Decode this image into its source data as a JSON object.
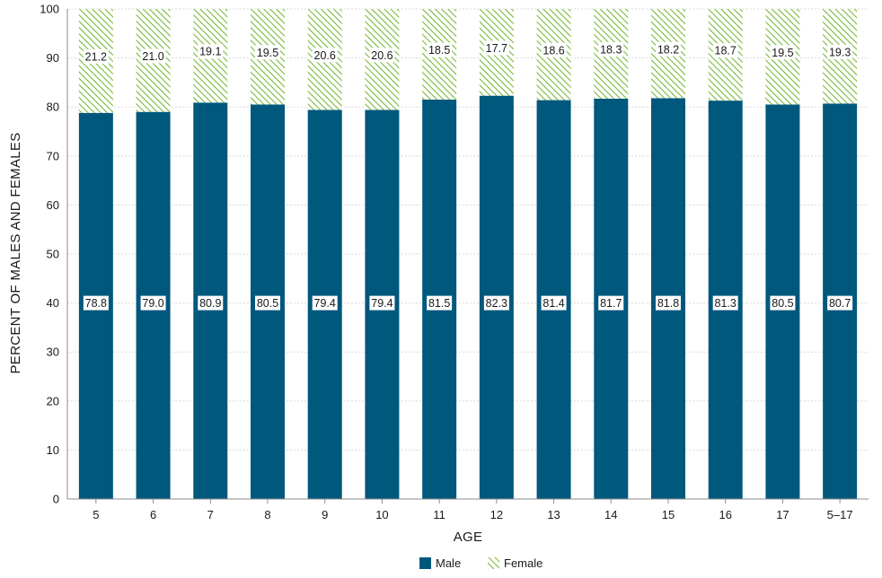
{
  "chart_data": {
    "type": "bar",
    "stacked": true,
    "categories": [
      "5",
      "6",
      "7",
      "8",
      "9",
      "10",
      "11",
      "12",
      "13",
      "14",
      "15",
      "16",
      "17",
      "5–17"
    ],
    "series": [
      {
        "name": "Male",
        "color": "#00587c",
        "values": [
          78.8,
          79.0,
          80.9,
          80.5,
          79.4,
          79.4,
          81.5,
          82.3,
          81.4,
          81.7,
          81.8,
          81.3,
          80.5,
          80.7
        ]
      },
      {
        "name": "Female",
        "color": "#78b93a",
        "pattern": "diagonal-hatch",
        "values": [
          21.2,
          21.0,
          19.1,
          19.5,
          20.6,
          20.6,
          18.5,
          17.7,
          18.6,
          18.3,
          18.2,
          18.7,
          19.5,
          19.3
        ]
      }
    ],
    "xlabel": "AGE",
    "ylabel": "PERCENT OF MALES AND FEMALES",
    "ylim": [
      0,
      100
    ],
    "yticks": [
      0,
      10,
      20,
      30,
      40,
      50,
      60,
      70,
      80,
      90,
      100
    ],
    "grid": true,
    "legend_position": "bottom"
  }
}
